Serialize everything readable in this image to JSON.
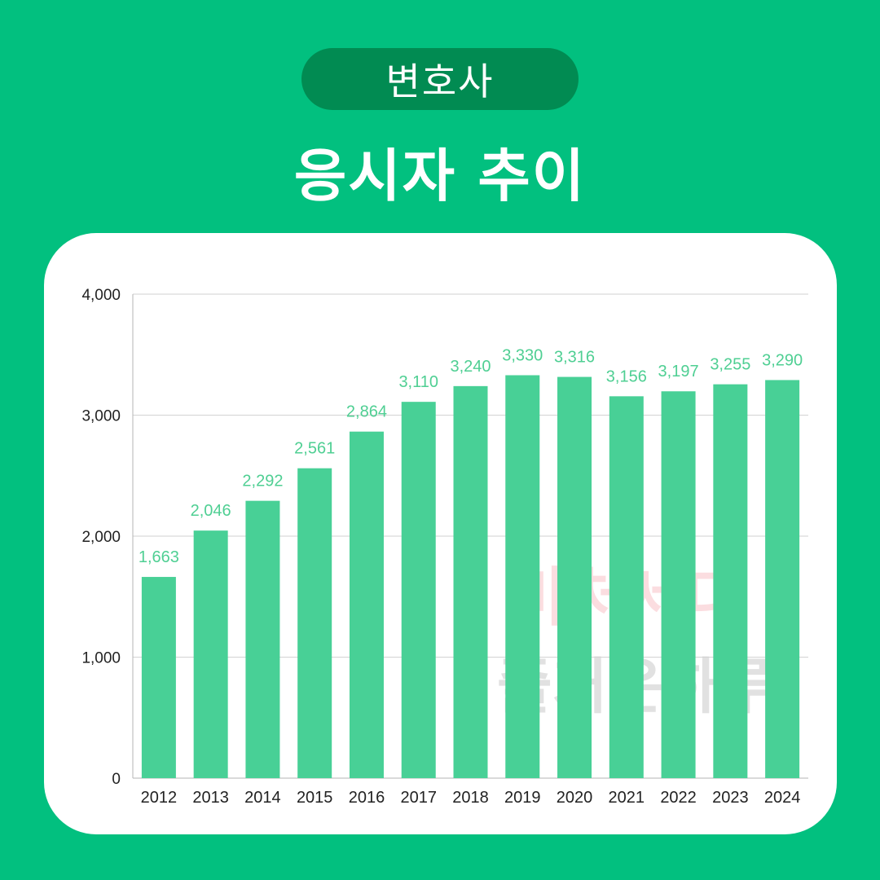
{
  "header": {
    "badge": "변호사",
    "title": "응시자 추이"
  },
  "watermark": {
    "line1": "마처세대",
    "line2": "즐거운하루"
  },
  "colors": {
    "background": "#02c07f",
    "badge": "#018b52",
    "bar": "#48d096",
    "data_label": "#4fcf93"
  },
  "chart_data": {
    "type": "bar",
    "categories": [
      "2012",
      "2013",
      "2014",
      "2015",
      "2016",
      "2017",
      "2018",
      "2019",
      "2020",
      "2021",
      "2022",
      "2023",
      "2024"
    ],
    "values": [
      1663,
      2046,
      2292,
      2561,
      2864,
      3110,
      3240,
      3330,
      3316,
      3156,
      3197,
      3255,
      3290
    ],
    "value_labels": [
      "1,663",
      "2,046",
      "2,292",
      "2,561",
      "2,864",
      "3,110",
      "3,240",
      "3,330",
      "3,316",
      "3,156",
      "3,197",
      "3,255",
      "3,290"
    ],
    "yticks": [
      0,
      1000,
      2000,
      3000,
      4000
    ],
    "ytick_labels": [
      "0",
      "1,000",
      "2,000",
      "3,000",
      "4,000"
    ],
    "ylim": [
      0,
      4000
    ],
    "grid": true,
    "legend": "none"
  }
}
